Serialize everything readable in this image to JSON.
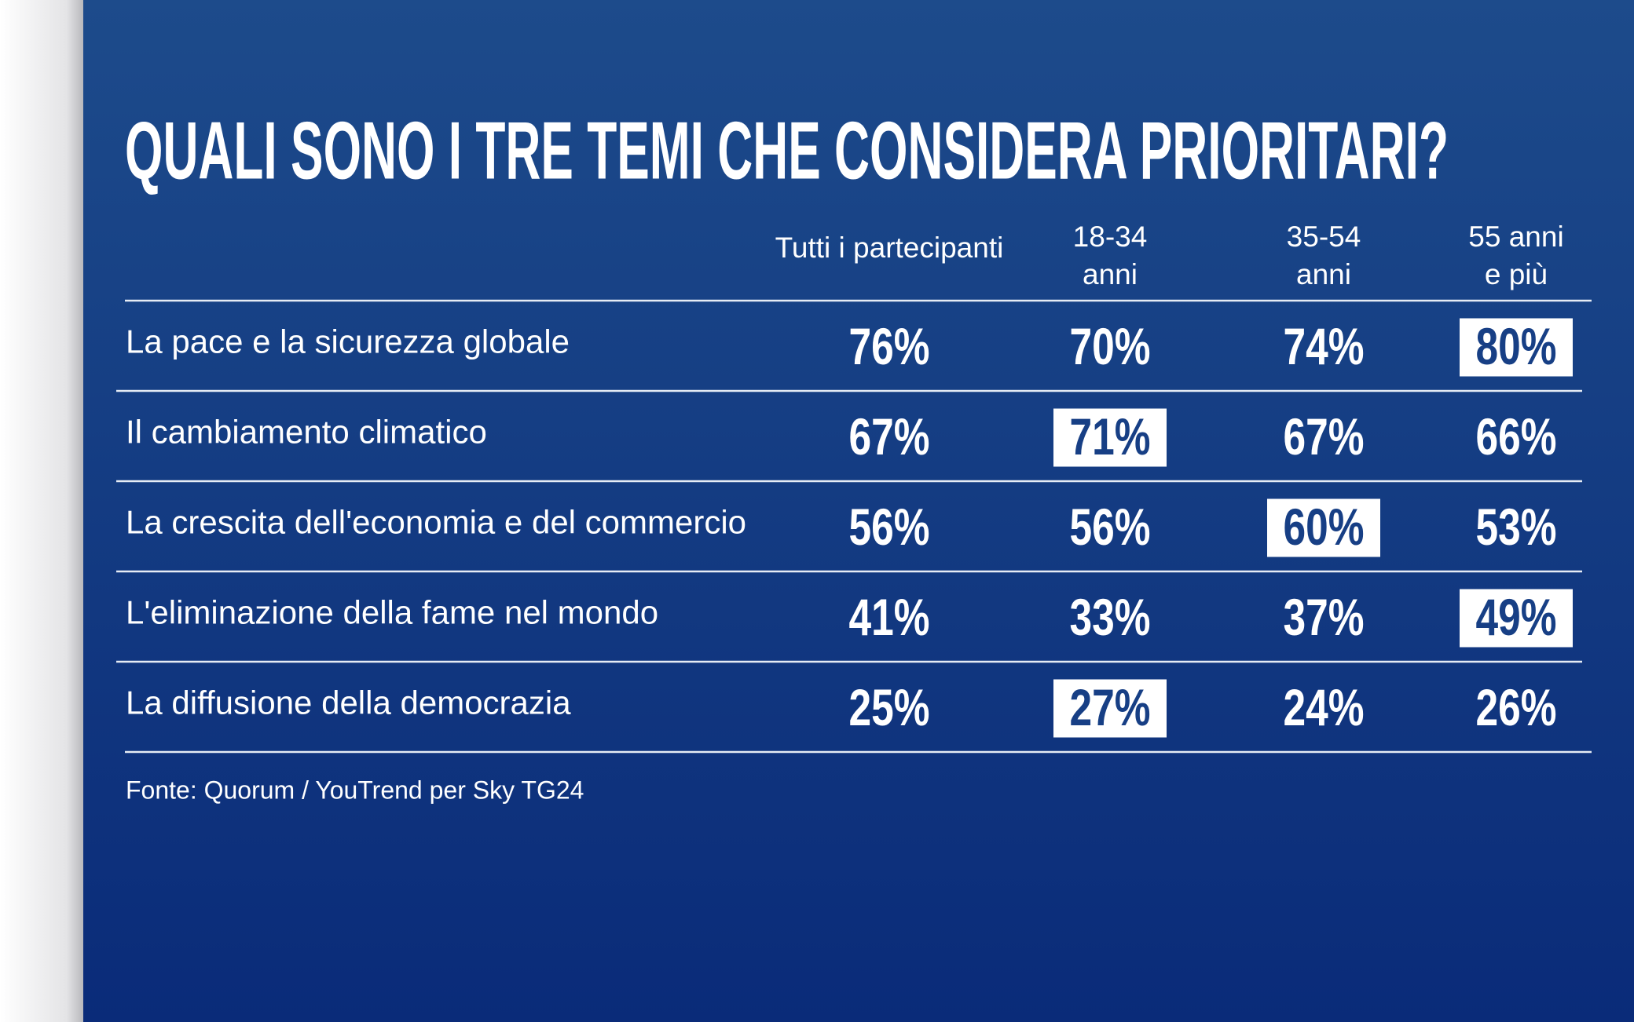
{
  "title": "QUALI SONO I TRE TEMI CHE CONSIDERA PRIORITARI?",
  "table": {
    "columns": [
      [
        "Tutti i partecipanti"
      ],
      [
        "18-34",
        "anni"
      ],
      [
        "35-54",
        "anni"
      ],
      [
        "55 anni",
        "e più"
      ]
    ],
    "rows": [
      {
        "label": "La pace e la sicurezza globale",
        "cells": [
          {
            "text": "76%"
          },
          {
            "text": "70%"
          },
          {
            "text": "74%"
          },
          {
            "text": "80%",
            "highlighted": true
          }
        ]
      },
      {
        "label": "Il cambiamento climatico",
        "cells": [
          {
            "text": "67%"
          },
          {
            "text": "71%",
            "highlighted": true
          },
          {
            "text": "67%"
          },
          {
            "text": "66%"
          }
        ]
      },
      {
        "label": "La crescita dell'economia e del commercio",
        "cells": [
          {
            "text": "56%"
          },
          {
            "text": "56%"
          },
          {
            "text": "60%",
            "highlighted": true
          },
          {
            "text": "53%"
          }
        ]
      },
      {
        "label": "L'eliminazione della fame nel mondo",
        "cells": [
          {
            "text": "41%"
          },
          {
            "text": "33%"
          },
          {
            "text": "37%"
          },
          {
            "text": "49%",
            "highlighted": true
          }
        ]
      },
      {
        "label": "La diffusione della democrazia",
        "cells": [
          {
            "text": "25%"
          },
          {
            "text": "27%",
            "highlighted": true
          },
          {
            "text": "24%"
          },
          {
            "text": "26%"
          }
        ]
      }
    ]
  },
  "source": "Fonte: Quorum / YouTrend per Sky TG24"
}
